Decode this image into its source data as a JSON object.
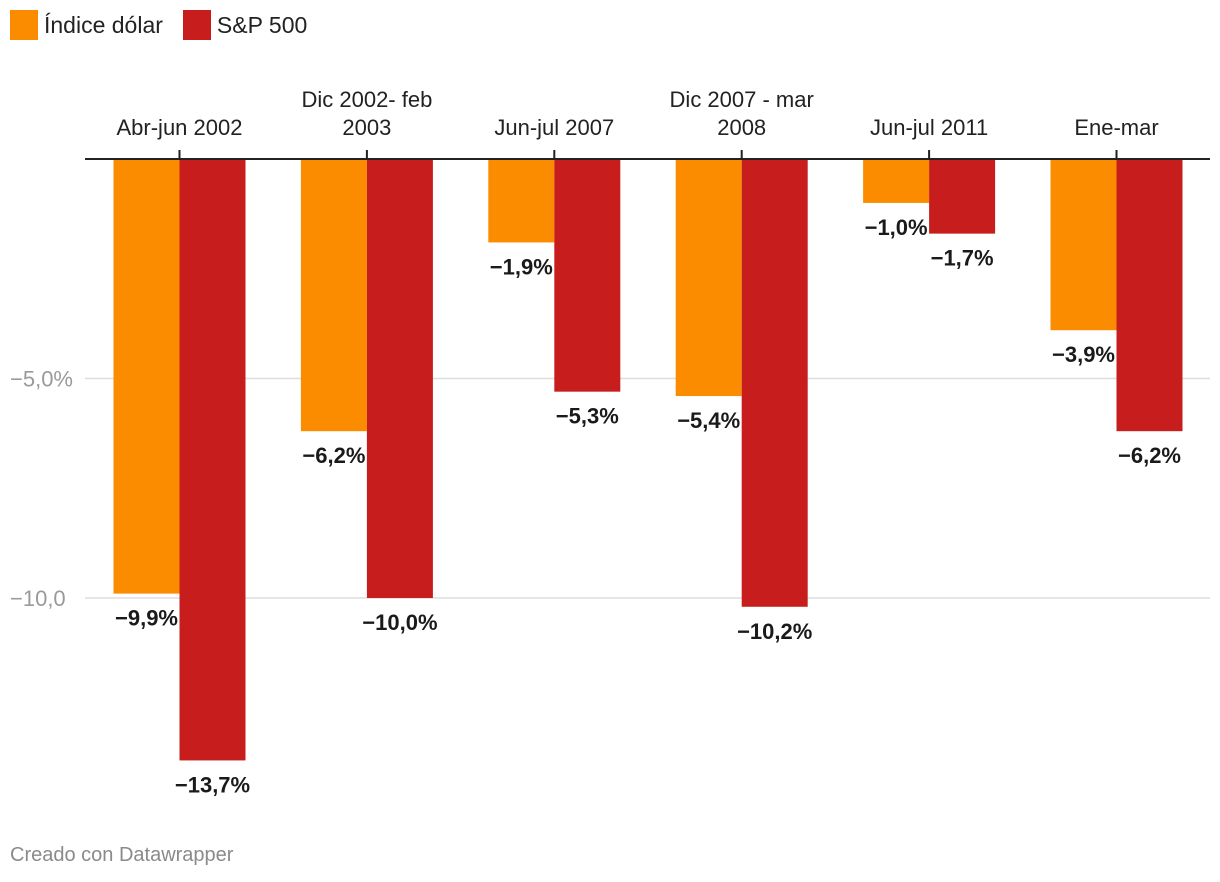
{
  "legend": [
    {
      "name": "Índice dólar",
      "color": "#fb8c00"
    },
    {
      "name": "S&P 500",
      "color": "#c71e1d"
    }
  ],
  "footer": "Creado con Datawrapper",
  "chart_data": {
    "type": "bar",
    "orientation": "vertical",
    "categories": [
      [
        "Abr-jun 2002"
      ],
      [
        "Dic 2002- feb",
        "2003"
      ],
      [
        "Jun-jul 2007"
      ],
      [
        "Dic 2007 - mar",
        "2008"
      ],
      [
        "Jun-jul 2011"
      ],
      [
        "Ene-mar"
      ]
    ],
    "series": [
      {
        "name": "Índice dólar",
        "color": "#fb8c00",
        "values": [
          -9.9,
          -6.2,
          -1.9,
          -5.4,
          -1.0,
          -3.9
        ],
        "labels": [
          "−9,9%",
          "−6,2%",
          "−1,9%",
          "−5,4%",
          "−1,0%",
          "−3,9%"
        ]
      },
      {
        "name": "S&P 500",
        "color": "#c71e1d",
        "values": [
          -13.7,
          -10.0,
          -5.3,
          -10.2,
          -1.7,
          -6.2
        ],
        "labels": [
          "−13,7%",
          "−10,0%",
          "−5,3%",
          "−10,2%",
          "−1,7%",
          "−6,2%"
        ]
      }
    ],
    "yticks": [
      {
        "value": -5,
        "label": "−5,0%"
      },
      {
        "value": -10,
        "label": "−10,0"
      }
    ],
    "ylim": [
      -14,
      0
    ],
    "grid": true,
    "legend_position": "top-left"
  }
}
